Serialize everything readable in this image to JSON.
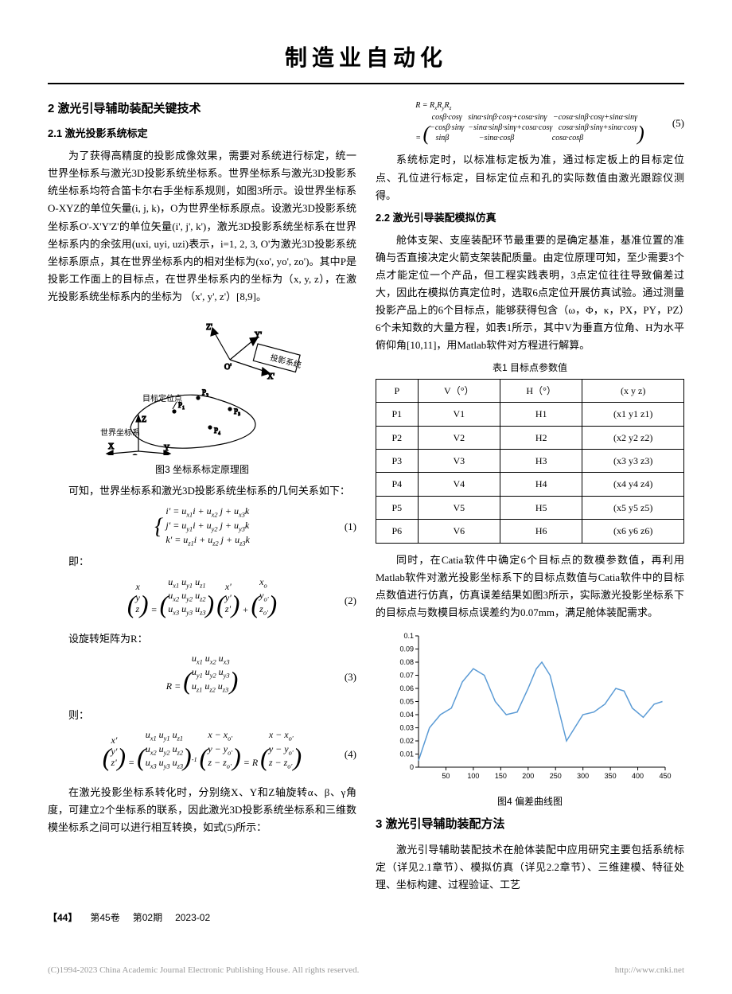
{
  "journal_title": "制造业自动化",
  "left": {
    "h2": "2  激光引导辅助装配关键技术",
    "h3_21": "2.1  激光投影系统标定",
    "p1": "为了获得高精度的投影成像效果，需要对系统进行标定，统一世界坐标系与激光3D投影系统坐标系。世界坐标系与激光3D投影系统坐标系均符合笛卡尔右手坐标系规则，如图3所示。设世界坐标系O-XYZ的单位矢量(i, j, k)，O为世界坐标系原点。设激光3D投影系统坐标系O'-X'Y'Z'的单位矢量(i', j', k')，激光3D投影系统坐标系在世界坐标系内的余弦用(uxi, uyi, uzi)表示，i=1, 2, 3, O'为激光3D投影系统坐标系原点，其在世界坐标系内的相对坐标为(xo', yo', zo')。其中P是投影工作面上的目标点，在世界坐标系内的坐标为（x, y, z），在激光投影系统坐标系内的坐标为 （x', y', z'）[8,9]。",
    "fig3_caption": "图3  坐标系标定原理图",
    "fig3_labels": {
      "proj": "投影系统",
      "target": "目标定位点",
      "world": "世界坐标系"
    },
    "p2": "可知，世界坐标系和激光3D投影系统坐标系的几何关系如下：",
    "eq1": "i'= u_{x1}i + u_{x2}j + u_{x3}k\nj'= u_{y1}i + u_{y2}j + u_{y3}k\nk'= u_{z1}i + u_{z2}j + u_{z3}k",
    "p3": "即：",
    "eq2_label": "(2)",
    "p4": "设旋转矩阵为R：",
    "eq3_label": "(3)",
    "p5": "则：",
    "eq4_label": "(4)",
    "p6": "在激光投影坐标系转化时，分别绕X、Y和Z轴旋转α、β、γ角度，可建立2个坐标系的联系，因此激光3D投影系统坐标系和三维数模坐标系之间可以进行相互转换，如式(5)所示："
  },
  "right": {
    "eq5_label": "(5)",
    "p7": "系统标定时，以标准标定板为准，通过标定板上的目标定位点、孔位进行标定，目标定位点和孔的实际数值由激光跟踪仪测得。",
    "h3_22": "2.2  激光引导装配模拟仿真",
    "p8": "舱体支架、支座装配环节最重要的是确定基准，基准位置的准确与否直接决定火箭支架装配质量。由定位原理可知，至少需要3个点才能定位一个产品，但工程实践表明，3点定位往往导致偏差过大，因此在模拟仿真定位时，选取6点定位开展仿真试验。通过测量投影产品上的6个目标点，能够获得包含（ω，Φ，κ，PX，PY，PZ）6个未知数的大量方程，如表1所示，其中V为垂直方位角、H为水平俯仰角[10,11]，用Matlab软件对方程进行解算。",
    "table1_caption": "表1  目标点参数值",
    "table1": {
      "headers": [
        "P",
        "V（°）",
        "H（°）",
        "(x   y   z)"
      ],
      "rows": [
        [
          "P1",
          "V1",
          "H1",
          "(x1  y1  z1)"
        ],
        [
          "P2",
          "V2",
          "H2",
          "(x2  y2  z2)"
        ],
        [
          "P3",
          "V3",
          "H3",
          "(x3  y3  z3)"
        ],
        [
          "P4",
          "V4",
          "H4",
          "(x4  y4  z4)"
        ],
        [
          "P5",
          "V5",
          "H5",
          "(x5  y5  z5)"
        ],
        [
          "P6",
          "V6",
          "H6",
          "(x6  y6  z6)"
        ]
      ]
    },
    "p9": "同时，在Catia软件中确定6个目标点的数模参数值，再利用Matlab软件对激光投影坐标系下的目标点数值与Catia软件中的目标点数值进行仿真，仿真误差结果如图3所示，实际激光投影坐标系下的目标点与数模目标点误差约为0.07mm，满足舱体装配需求。",
    "chart": {
      "type": "line",
      "xlim": [
        0,
        450
      ],
      "ylim": [
        0,
        0.1
      ],
      "xtick_step": 50,
      "yticks": [
        0,
        0.01,
        0.02,
        0.03,
        0.04,
        0.05,
        0.06,
        0.07,
        0.08,
        0.09,
        0.1
      ],
      "line_color": "#5b9bd5",
      "line_width": 1.5,
      "background_color": "#ffffff",
      "grid": false,
      "tick_fontsize": 9,
      "points": [
        [
          0,
          0.005
        ],
        [
          20,
          0.03
        ],
        [
          40,
          0.04
        ],
        [
          60,
          0.045
        ],
        [
          80,
          0.065
        ],
        [
          100,
          0.075
        ],
        [
          120,
          0.07
        ],
        [
          140,
          0.05
        ],
        [
          160,
          0.04
        ],
        [
          180,
          0.042
        ],
        [
          200,
          0.06
        ],
        [
          215,
          0.075
        ],
        [
          225,
          0.08
        ],
        [
          240,
          0.07
        ],
        [
          255,
          0.045
        ],
        [
          270,
          0.02
        ],
        [
          285,
          0.03
        ],
        [
          300,
          0.04
        ],
        [
          320,
          0.042
        ],
        [
          340,
          0.048
        ],
        [
          360,
          0.06
        ],
        [
          375,
          0.058
        ],
        [
          390,
          0.045
        ],
        [
          410,
          0.038
        ],
        [
          430,
          0.048
        ],
        [
          445,
          0.05
        ]
      ]
    },
    "fig4_caption": "图4  偏差曲线图",
    "h2_3": "3  激光引导辅助装配方法",
    "p10": "激光引导辅助装配技术在舱体装配中应用研究主要包括系统标定（详见2.1章节）、模拟仿真（详见2.2章节）、三维建模、特征处理、坐标构建、过程验证、工艺"
  },
  "footer": {
    "page": "【44】",
    "vol": "第45卷",
    "issue": "第02期",
    "date": "2023-02"
  },
  "copyright": {
    "left": "(C)1994-2023 China Academic Journal Electronic Publishing House. All rights reserved.",
    "right": "http://www.cnki.net"
  }
}
